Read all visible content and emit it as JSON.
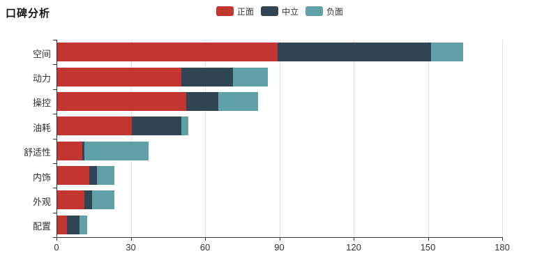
{
  "page": {
    "background": "#ffffff"
  },
  "chart_data": {
    "type": "bar",
    "orientation": "horizontal",
    "stacked": true,
    "title": "口碑分析",
    "categories": [
      "空间",
      "动力",
      "操控",
      "油耗",
      "舒适性",
      "内饰",
      "外观",
      "配置"
    ],
    "series": [
      {
        "name": "正面",
        "key": "positive",
        "color": "#c23531",
        "values": [
          89,
          50,
          52,
          30,
          10,
          13,
          11,
          4
        ]
      },
      {
        "name": "中立",
        "key": "neutral",
        "color": "#2f4554",
        "values": [
          62,
          21,
          13,
          20,
          1,
          3,
          3,
          5
        ]
      },
      {
        "name": "负面",
        "key": "negative",
        "color": "#61a0a8",
        "values": [
          13,
          14,
          16,
          3,
          26,
          7,
          9,
          3
        ]
      }
    ],
    "totals": [
      164,
      85,
      81,
      53,
      37,
      23,
      23,
      12
    ],
    "xlabel": "",
    "ylabel": "",
    "xlim": [
      0,
      180
    ],
    "xticks": [
      0,
      30,
      60,
      90,
      120,
      150,
      180
    ],
    "grid": true,
    "legend_position": "top",
    "axis_color": "#333333",
    "grid_color": "#e0e0e0",
    "text_color": "#333333"
  }
}
